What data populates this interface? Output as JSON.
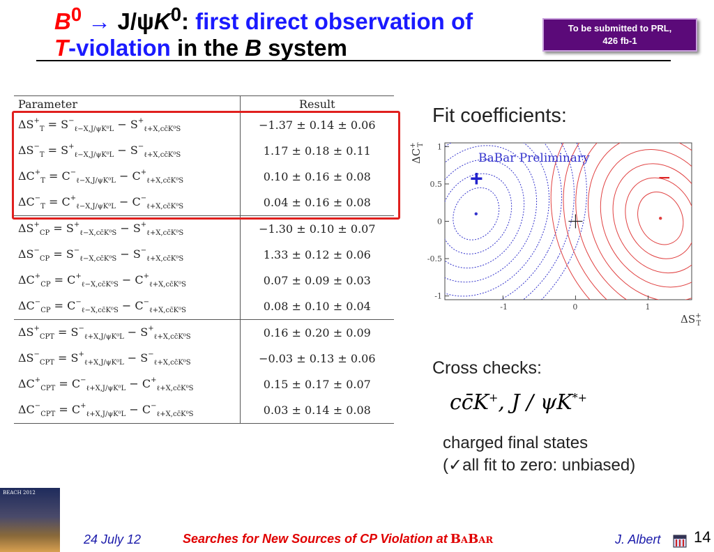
{
  "title": {
    "b0": "B",
    "b0_sup": "0",
    "arrow": " → ",
    "jpsi": "J/ψ",
    "k0": "K",
    "k0_sup": "0",
    "colon": ":",
    "line1_rest": " first direct observation of",
    "t": "T",
    "violation": "-violation",
    "in_the": " in the ",
    "b": "B",
    "system": " system"
  },
  "prl_note": {
    "line1": "To be submitted to PRL,",
    "line2": "426 fb-1"
  },
  "table": {
    "header_parameter": "Parameter",
    "header_result": "Result",
    "rows": [
      {
        "param": "ΔS",
        "psub": "T",
        "psup": "+",
        "lhs": "S",
        "lsup": "−",
        "lsub": "ℓ−X,J/ψK⁰L",
        "rhs": "S",
        "rsup": "+",
        "rsub": "ℓ+X,cc̄K⁰S",
        "result": "−1.37 ± 0.14 ± 0.06"
      },
      {
        "param": "ΔS",
        "psub": "T",
        "psup": "−",
        "lhs": "S",
        "lsup": "+",
        "lsub": "ℓ−X,J/ψK⁰L",
        "rhs": "S",
        "rsup": "−",
        "rsub": "ℓ+X,cc̄K⁰S",
        "result": "1.17 ± 0.18 ± 0.11"
      },
      {
        "param": "ΔC",
        "psub": "T",
        "psup": "+",
        "lhs": "C",
        "lsup": "−",
        "lsub": "ℓ−X,J/ψK⁰L",
        "rhs": "C",
        "rsup": "+",
        "rsub": "ℓ+X,cc̄K⁰S",
        "result": "0.10 ± 0.16 ± 0.08"
      },
      {
        "param": "ΔC",
        "psub": "T",
        "psup": "−",
        "lhs": "C",
        "lsup": "+",
        "lsub": "ℓ−X,J/ψK⁰L",
        "rhs": "C",
        "rsup": "−",
        "rsub": "ℓ+X,cc̄K⁰S",
        "result": "0.04 ± 0.16 ± 0.08"
      },
      {
        "param": "ΔS",
        "psub": "CP",
        "psup": "+",
        "lhs": "S",
        "lsup": "+",
        "lsub": "ℓ−X,cc̄K⁰S",
        "rhs": "S",
        "rsup": "+",
        "rsub": "ℓ+X,cc̄K⁰S",
        "result": "−1.30 ± 0.10 ± 0.07"
      },
      {
        "param": "ΔS",
        "psub": "CP",
        "psup": "−",
        "lhs": "S",
        "lsup": "−",
        "lsub": "ℓ−X,cc̄K⁰S",
        "rhs": "S",
        "rsup": "−",
        "rsub": "ℓ+X,cc̄K⁰S",
        "result": "1.33 ± 0.12 ± 0.06"
      },
      {
        "param": "ΔC",
        "psub": "CP",
        "psup": "+",
        "lhs": "C",
        "lsup": "+",
        "lsub": "ℓ−X,cc̄K⁰S",
        "rhs": "C",
        "rsup": "+",
        "rsub": "ℓ+X,cc̄K⁰S",
        "result": "0.07 ± 0.09 ± 0.03"
      },
      {
        "param": "ΔC",
        "psub": "CP",
        "psup": "−",
        "lhs": "C",
        "lsup": "−",
        "lsub": "ℓ−X,cc̄K⁰S",
        "rhs": "C",
        "rsup": "−",
        "rsub": "ℓ+X,cc̄K⁰S",
        "result": "0.08 ± 0.10 ± 0.04"
      },
      {
        "param": "ΔS",
        "psub": "CPT",
        "psup": "+",
        "lhs": "S",
        "lsup": "−",
        "lsub": "ℓ+X,J/ψK⁰L",
        "rhs": "S",
        "rsup": "+",
        "rsub": "ℓ+X,cc̄K⁰S",
        "result": "0.16 ± 0.20 ± 0.09"
      },
      {
        "param": "ΔS",
        "psub": "CPT",
        "psup": "−",
        "lhs": "S",
        "lsup": "+",
        "lsub": "ℓ+X,J/ψK⁰L",
        "rhs": "S",
        "rsup": "−",
        "rsub": "ℓ+X,cc̄K⁰S",
        "result": "−0.03 ± 0.13 ± 0.06"
      },
      {
        "param": "ΔC",
        "psub": "CPT",
        "psup": "+",
        "lhs": "C",
        "lsup": "−",
        "lsub": "ℓ+X,J/ψK⁰L",
        "rhs": "C",
        "rsup": "+",
        "rsub": "ℓ+X,cc̄K⁰S",
        "result": "0.15 ± 0.17 ± 0.07"
      },
      {
        "param": "ΔC",
        "psub": "CPT",
        "psup": "−",
        "lhs": "C",
        "lsup": "+",
        "lsub": "ℓ+X,J/ψK⁰L",
        "rhs": "C",
        "rsup": "−",
        "rsub": "ℓ+X,cc̄K⁰S",
        "result": "0.03 ± 0.14 ± 0.08"
      }
    ]
  },
  "fit_label": "Fit coefficients:",
  "chart_data": {
    "type": "contour",
    "annotation": "BaBar Preliminary",
    "xlabel": "ΔS⁺T",
    "ylabel": "ΔC⁺T",
    "xlim": [
      -1.8,
      1.6
    ],
    "ylim": [
      -1.05,
      1.05
    ],
    "xticks": [
      "-1",
      "0",
      "1"
    ],
    "yticks": [
      "1",
      "0.5",
      "0",
      "-0.5",
      "-1"
    ],
    "series": [
      {
        "name": "+",
        "color": "#3333cc",
        "center": [
          -1.37,
          0.1
        ]
      },
      {
        "name": "−",
        "color": "#e04040",
        "center": [
          1.17,
          0.04
        ]
      }
    ],
    "zero_marker": [
      0,
      0
    ]
  },
  "cross_checks": {
    "label": "Cross checks:",
    "formula_cc": "cc̄K",
    "formula_cc_sup": "+",
    "formula_sep": ", J / ψK",
    "formula_star_sup": "*+",
    "line1": "charged final states",
    "line2": "(✓all fit to zero: unbiased)"
  },
  "footer": {
    "logo_text": "BEACH 2012",
    "date": "24 July 12",
    "title": "Searches for New Sources of CP Violation at",
    "babar": "BaBar",
    "author": "J. Albert",
    "page": "14"
  },
  "colors": {
    "title_blue": "#1a1aff",
    "title_red": "#ff0000",
    "highlight": "#e0201e",
    "prl_bg": "#5b0a79"
  }
}
